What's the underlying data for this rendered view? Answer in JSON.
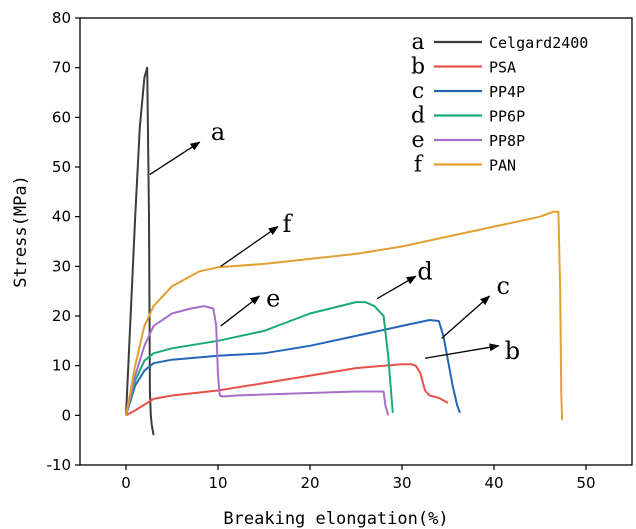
{
  "chart_data": {
    "type": "line",
    "xlabel": "Breaking elongation(%)",
    "ylabel": "Stress(MPa)",
    "xlim": [
      -5,
      55
    ],
    "ylim": [
      -10,
      80
    ],
    "x_ticks": [
      0,
      10,
      20,
      30,
      40,
      50
    ],
    "y_ticks": [
      -10,
      0,
      10,
      20,
      30,
      40,
      50,
      60,
      70,
      80
    ],
    "grid": false,
    "legend_position": "top-right",
    "series": [
      {
        "key": "a",
        "name": "Celgard2400",
        "color": "#3c3c3c",
        "x": [
          0,
          0.5,
          1.0,
          1.5,
          2.0,
          2.3,
          2.5,
          2.6,
          2.7,
          2.8,
          3.0
        ],
        "y": [
          0,
          20,
          40,
          58,
          68,
          70,
          40,
          5,
          0,
          -2,
          -4
        ]
      },
      {
        "key": "b",
        "name": "PSA",
        "color": "#e8504a",
        "x": [
          0,
          1,
          3,
          5,
          10,
          15,
          20,
          25,
          28,
          30,
          31,
          31.5,
          32,
          32.5,
          33,
          34,
          35
        ],
        "y": [
          0,
          1,
          3.3,
          4,
          5,
          6.5,
          8,
          9.5,
          10,
          10.3,
          10.3,
          10,
          8.5,
          5,
          4,
          3.5,
          2.5
        ]
      },
      {
        "key": "c",
        "name": "PP4P",
        "color": "#2266b8",
        "x": [
          0,
          1,
          2,
          3,
          5,
          10,
          15,
          20,
          25,
          30,
          33,
          34,
          34.5,
          35,
          35.5,
          36,
          36.3
        ],
        "y": [
          0,
          6,
          9,
          10.5,
          11.2,
          12,
          12.5,
          14,
          16,
          18,
          19.2,
          19,
          16,
          11,
          6,
          2,
          0.5
        ]
      },
      {
        "key": "d",
        "name": "PP6P",
        "color": "#1aaa7a",
        "x": [
          0,
          1,
          2,
          3,
          5,
          10,
          15,
          20,
          25,
          26,
          27,
          28,
          28.5,
          28.8,
          29
        ],
        "y": [
          0,
          7,
          11,
          12.5,
          13.5,
          15,
          17,
          20.5,
          22.8,
          22.8,
          22,
          20,
          12,
          5,
          0.5
        ]
      },
      {
        "key": "e",
        "name": "PP8P",
        "color": "#a66fc8",
        "x": [
          0,
          1,
          2,
          3,
          5,
          7,
          8.5,
          9.5,
          9.8,
          10.0,
          10.2,
          10.5,
          12,
          15,
          20,
          25,
          28,
          28.2,
          28.5
        ],
        "y": [
          0,
          8,
          14,
          18,
          20.5,
          21.5,
          22,
          21.5,
          18,
          8,
          4,
          3.8,
          4,
          4.2,
          4.5,
          4.8,
          4.8,
          2,
          0
        ]
      },
      {
        "key": "f",
        "name": "PAN",
        "color": "#e2a033",
        "x": [
          0,
          1,
          2,
          3,
          5,
          8,
          10,
          15,
          20,
          25,
          30,
          35,
          40,
          45,
          46.5,
          47,
          47.2,
          47.3,
          47.4
        ],
        "y": [
          0,
          10,
          18,
          22,
          26,
          29,
          29.8,
          30.5,
          31.5,
          32.5,
          34,
          36,
          38,
          40,
          41,
          41,
          25,
          5,
          -1
        ]
      }
    ],
    "annotations": [
      {
        "text": "a",
        "from": [
          2.6,
          48.5
        ],
        "to": [
          8,
          55
        ],
        "label_at": [
          10,
          57
        ]
      },
      {
        "text": "f",
        "from": [
          10.3,
          30
        ],
        "to": [
          16.5,
          38
        ],
        "label_at": [
          17.5,
          38.5
        ]
      },
      {
        "text": "e",
        "from": [
          10.3,
          18
        ],
        "to": [
          14.5,
          24
        ],
        "label_at": [
          16,
          23.5
        ]
      },
      {
        "text": "d",
        "from": [
          27.3,
          23.5
        ],
        "to": [
          31.5,
          28
        ],
        "label_at": [
          32.5,
          29
        ]
      },
      {
        "text": "c",
        "from": [
          34.3,
          15.5
        ],
        "to": [
          39.5,
          24
        ],
        "label_at": [
          41,
          26
        ]
      },
      {
        "text": "b",
        "from": [
          32.5,
          11.5
        ],
        "to": [
          40.5,
          14
        ],
        "label_at": [
          42,
          13
        ]
      }
    ]
  }
}
